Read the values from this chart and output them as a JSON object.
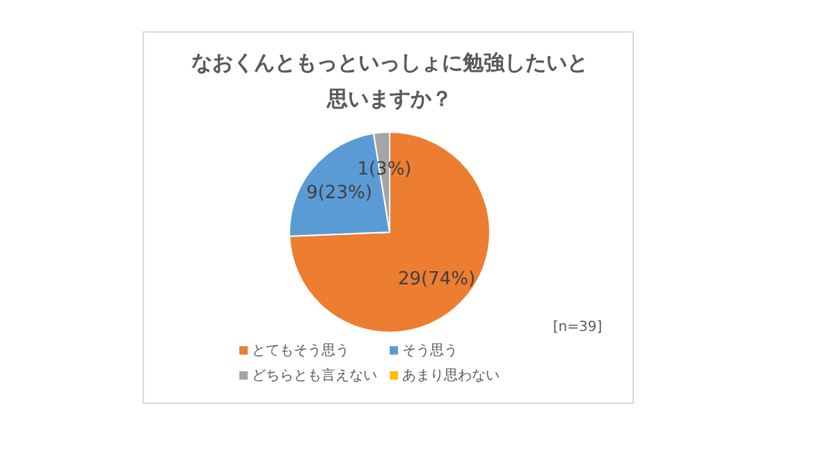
{
  "chart_data": {
    "type": "pie",
    "title": "なおくんともっといっしょに勉強したいと思いますか？",
    "categories": [
      "とてもそう思う",
      "そう思う",
      "どちらとも言えない",
      "あまり思わない"
    ],
    "values": [
      29,
      9,
      1,
      0
    ],
    "colors": [
      "#ed7d31",
      "#5b9bd5",
      "#a5a5a5",
      "#ffc000"
    ],
    "value_labels": [
      "29(74%)",
      "9(23%)",
      "1(3%)",
      null
    ],
    "annotations": [
      "[n=39]"
    ],
    "legend": "bottom"
  }
}
